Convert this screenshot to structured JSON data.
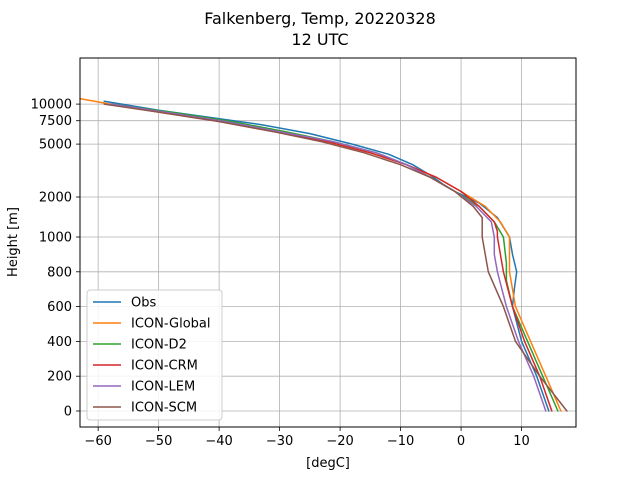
{
  "chart_data": {
    "type": "line",
    "title": "Falkenberg, Temp, 20220328",
    "subtitle": "12 UTC",
    "xlabel": "[degC]",
    "ylabel": "Height [m]",
    "xlim": [
      -63,
      19
    ],
    "xticks": [
      -60,
      -50,
      -40,
      -30,
      -20,
      -10,
      0,
      10
    ],
    "xtick_labels": [
      "−60",
      "−50",
      "−40",
      "−30",
      "−20",
      "−10",
      "0",
      "10"
    ],
    "yticks": [
      0,
      200,
      400,
      600,
      800,
      1000,
      2000,
      5000,
      7500,
      10000
    ],
    "ytick_labels": [
      "0",
      "200",
      "400",
      "600",
      "800",
      "1000",
      "2000",
      "5000",
      "7500",
      "10000"
    ],
    "y_scale": "piecewise: linear 0-1000 m, logarithmic 1000-12000 m",
    "grid": true,
    "legend_position": "lower-left",
    "series": [
      {
        "name": "Obs",
        "color": "#1f77b4",
        "temp": [
          14.5,
          12.5,
          10.0,
          8.5,
          8.8,
          9.2,
          8.5,
          8.0,
          6.0,
          3.0,
          -1.0,
          -3.0,
          -5.0,
          -8.0,
          -12.0,
          -18.0,
          -25.0,
          -33.0,
          -42.0,
          -50.0,
          -59.0
        ],
        "height": [
          0,
          200,
          400,
          600,
          700,
          800,
          900,
          1000,
          1400,
          1800,
          2200,
          2500,
          2900,
          3500,
          4200,
          5000,
          6000,
          7000,
          8000,
          9000,
          10500
        ]
      },
      {
        "name": "ICON-Global",
        "color": "#ff7f0e",
        "temp": [
          16.5,
          14.0,
          11.5,
          9.0,
          8.0,
          8.0,
          8.0,
          6.5,
          4.0,
          0.0,
          -4.0,
          -9.0,
          -15.0,
          -22.0,
          -30.0,
          -39.0,
          -49.0,
          -58.0,
          -63.0
        ],
        "height": [
          0,
          200,
          400,
          600,
          800,
          900,
          1000,
          1300,
          1700,
          2200,
          2800,
          3500,
          4300,
          5200,
          6200,
          7400,
          8700,
          10000,
          11000
        ]
      },
      {
        "name": "ICON-D2",
        "color": "#2ca02c",
        "temp": [
          16.0,
          13.5,
          11.0,
          8.5,
          7.5,
          7.5,
          7.0,
          5.5,
          3.0,
          -1.0,
          -5.0,
          -9.0,
          -14.0,
          -21.0,
          -29.0,
          -38.0,
          -48.0,
          -58.0
        ],
        "height": [
          0,
          200,
          400,
          600,
          750,
          850,
          1000,
          1300,
          1700,
          2200,
          2800,
          3500,
          4300,
          5200,
          6200,
          7400,
          8700,
          10000
        ]
      },
      {
        "name": "ICON-CRM",
        "color": "#d62728",
        "temp": [
          15.0,
          13.0,
          10.5,
          8.5,
          7.0,
          6.0,
          6.0,
          5.5,
          3.0,
          0.0,
          -4.0,
          -9.0,
          -15.0,
          -22.0,
          -31.0,
          -40.0,
          -50.0,
          -58.0
        ],
        "height": [
          0,
          200,
          400,
          600,
          800,
          1000,
          1100,
          1300,
          1700,
          2200,
          2800,
          3500,
          4300,
          5200,
          6200,
          7400,
          8700,
          10000
        ]
      },
      {
        "name": "ICON-LEM",
        "color": "#9467bd",
        "temp": [
          14.0,
          12.0,
          9.5,
          7.5,
          6.0,
          5.5,
          5.5,
          5.0,
          2.5,
          -1.0,
          -5.0,
          -9.0,
          -14.0,
          -21.0,
          -30.0,
          -39.0,
          -49.0,
          -58.0
        ],
        "height": [
          0,
          200,
          400,
          600,
          800,
          900,
          1000,
          1300,
          1700,
          2200,
          2800,
          3500,
          4300,
          5200,
          6200,
          7400,
          8700,
          10000
        ]
      },
      {
        "name": "ICON-SCM",
        "color": "#8c564b",
        "temp": [
          17.5,
          13.0,
          9.0,
          7.0,
          4.5,
          3.5,
          3.5,
          3.5,
          2.0,
          -1.0,
          -5.0,
          -10.0,
          -16.0,
          -23.0,
          -31.0,
          -40.0,
          -50.0,
          -59.0
        ],
        "height": [
          0,
          200,
          400,
          600,
          800,
          1000,
          1200,
          1400,
          1700,
          2200,
          2800,
          3500,
          4300,
          5200,
          6200,
          7400,
          8700,
          10000
        ]
      }
    ]
  }
}
